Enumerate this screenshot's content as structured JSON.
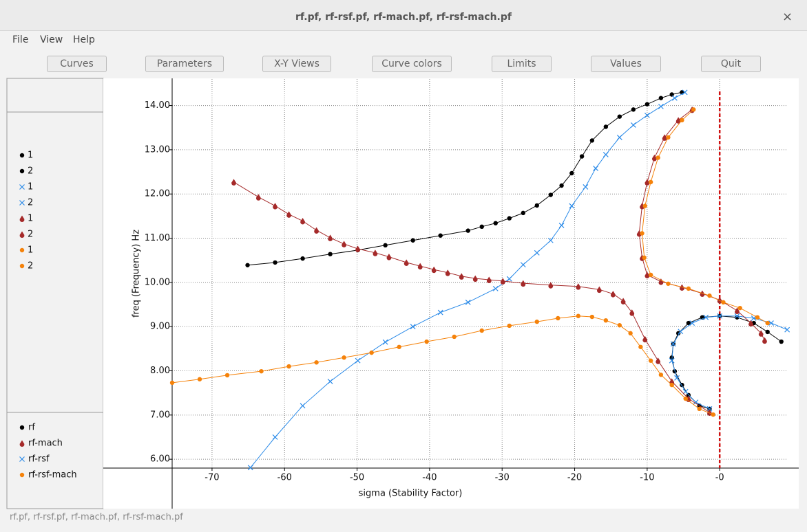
{
  "window": {
    "title": "rf.pf, rf-rsf.pf, rf-mach.pf, rf-rsf-mach.pf",
    "close": "×",
    "menu": [
      "File",
      "View",
      "Help"
    ],
    "buttons": [
      "Curves",
      "Parameters",
      "X-Y Views",
      "Curve colors",
      "Limits",
      "Values",
      "Quit"
    ],
    "status": "rf.pf, rf-rsf.pf, rf-mach.pf, rf-rsf-mach.pf"
  },
  "chart_data": {
    "type": "line",
    "x_label": "sigma (Stability Factor)",
    "y_label": "freq (Frequency) Hz",
    "xlim": [
      -75.5,
      10.9
    ],
    "ylim": [
      5.8,
      14.6
    ],
    "xticks": [
      -70,
      -60,
      -50,
      -40,
      -30,
      -20,
      -10,
      {
        "value": 0,
        "label": "-0"
      }
    ],
    "yticks": [
      {
        "value": 6,
        "label": "6.00"
      },
      {
        "value": 7,
        "label": "7.00"
      },
      {
        "value": 8,
        "label": "8.00"
      },
      {
        "value": 9,
        "label": "9.00"
      },
      {
        "value": 10,
        "label": "10.00"
      },
      {
        "value": 11,
        "label": "11.00"
      },
      {
        "value": 12,
        "label": "12.00"
      },
      {
        "value": 13,
        "label": "13.00"
      },
      {
        "value": 14,
        "label": "14.00"
      }
    ],
    "grid": true,
    "vline": {
      "value": 0,
      "color": "#d01010"
    },
    "series": [
      {
        "name": "1",
        "color": "#000000",
        "marker": "circle",
        "x": [
          -65.1,
          -61.3,
          -57.5,
          -53.7,
          -49.9,
          -46.1,
          -42.3,
          -38.5,
          -34.7,
          -32.8,
          -30.9,
          -29.0,
          -27.1,
          -25.2,
          -23.3,
          -21.8,
          -20.4,
          -19.0,
          -17.6,
          -15.7,
          -13.8,
          -11.9,
          -10.0,
          -8.1,
          -6.6,
          -5.2
        ],
        "values": [
          10.39,
          10.45,
          10.54,
          10.64,
          10.73,
          10.84,
          10.95,
          11.06,
          11.17,
          11.26,
          11.34,
          11.45,
          11.57,
          11.74,
          11.98,
          12.19,
          12.47,
          12.85,
          13.21,
          13.52,
          13.75,
          13.91,
          14.03,
          14.17,
          14.25,
          14.3
        ]
      },
      {
        "name": "2",
        "color": "#000000",
        "marker": "circle",
        "x": [
          -1.4,
          -2.8,
          -4.3,
          -5.2,
          -6.2,
          -6.6,
          -6.4,
          -5.7,
          -4.3,
          -2.4,
          0,
          2.4,
          4.7,
          6.6,
          8.5
        ],
        "values": [
          7.14,
          7.21,
          7.45,
          7.68,
          7.99,
          8.3,
          8.61,
          8.85,
          9.08,
          9.21,
          9.24,
          9.21,
          9.08,
          8.88,
          8.66
        ]
      },
      {
        "name": "1",
        "color": "#2a8ae8",
        "marker": "x",
        "x": [
          -64.7,
          -61.3,
          -57.5,
          -53.7,
          -49.9,
          -46.1,
          -42.3,
          -38.5,
          -34.7,
          -30.9,
          -29.0,
          -27.1,
          -25.2,
          -23.3,
          -21.8,
          -20.4,
          -18.5,
          -17.1,
          -15.7,
          -13.8,
          -11.9,
          -10.0,
          -8.1,
          -6.2,
          -4.8
        ],
        "values": [
          5.81,
          6.5,
          7.21,
          7.76,
          8.23,
          8.65,
          9.0,
          9.32,
          9.55,
          9.86,
          10.08,
          10.4,
          10.67,
          10.95,
          11.29,
          11.73,
          12.16,
          12.58,
          12.89,
          13.28,
          13.56,
          13.78,
          13.98,
          14.17,
          14.3
        ]
      },
      {
        "name": "2",
        "color": "#2a8ae8",
        "marker": "x",
        "x": [
          -1.4,
          -3.3,
          -4.7,
          -5.9,
          -6.6,
          -6.4,
          -5.4,
          -3.8,
          -1.9,
          0,
          2.4,
          4.7,
          7.1,
          9.3
        ],
        "values": [
          7.14,
          7.29,
          7.53,
          7.84,
          8.23,
          8.61,
          8.89,
          9.08,
          9.21,
          9.24,
          9.24,
          9.19,
          9.08,
          8.93
        ]
      },
      {
        "name": "1",
        "color": "#a52a2a",
        "marker": "drop",
        "x": [
          -67.0,
          -63.6,
          -61.3,
          -59.4,
          -57.5,
          -55.6,
          -53.7,
          -51.8,
          -49.9,
          -47.5,
          -45.6,
          -43.2,
          -41.3,
          -39.4,
          -37.5,
          -35.6,
          -33.7,
          -31.8,
          -29.9,
          -27.1,
          -23.3,
          -19.5,
          -16.6,
          -14.7,
          -13.3,
          -12.1,
          -10.3,
          -8.5,
          -6.6,
          -4.3,
          -1.4
        ],
        "values": [
          12.27,
          11.93,
          11.73,
          11.54,
          11.39,
          11.18,
          11.01,
          10.87,
          10.76,
          10.67,
          10.58,
          10.45,
          10.37,
          10.29,
          10.22,
          10.14,
          10.09,
          10.06,
          10.03,
          9.98,
          9.94,
          9.91,
          9.84,
          9.74,
          9.58,
          9.32,
          8.72,
          8.23,
          7.76,
          7.37,
          7.06
        ]
      },
      {
        "name": "2",
        "color": "#a52a2a",
        "marker": "drop",
        "x": [
          -3.8,
          -5.7,
          -7.6,
          -9.0,
          -10.0,
          -10.7,
          -11.1,
          -10.7,
          -10.0,
          -8.1,
          -5.2,
          -2.4,
          0,
          2.4,
          4.3,
          5.7,
          6.2
        ],
        "values": [
          13.91,
          13.67,
          13.28,
          12.82,
          12.27,
          11.73,
          11.11,
          10.56,
          10.17,
          10.02,
          9.89,
          9.75,
          9.6,
          9.36,
          9.08,
          8.85,
          8.69
        ]
      },
      {
        "name": "1",
        "color": "#f5820a",
        "marker": "circle",
        "x": [
          -75.5,
          -71.7,
          -67.9,
          -63.2,
          -59.4,
          -55.6,
          -51.8,
          -48.0,
          -44.2,
          -40.4,
          -36.6,
          -32.8,
          -29.0,
          -25.2,
          -22.3,
          -19.5,
          -17.6,
          -15.7,
          -13.8,
          -12.3,
          -10.9,
          -9.5,
          -8.1,
          -6.6,
          -4.7,
          -2.8,
          -0.9
        ],
        "values": [
          7.73,
          7.81,
          7.9,
          7.99,
          8.1,
          8.19,
          8.3,
          8.41,
          8.54,
          8.66,
          8.77,
          8.91,
          9.02,
          9.11,
          9.19,
          9.24,
          9.22,
          9.14,
          9.03,
          8.85,
          8.54,
          8.23,
          7.91,
          7.68,
          7.37,
          7.14,
          7.01
        ]
      },
      {
        "name": "2",
        "color": "#f5820a",
        "marker": "circle",
        "x": [
          -3.6,
          -5.2,
          -7.1,
          -8.5,
          -9.5,
          -10.3,
          -10.7,
          -10.4,
          -9.5,
          -7.1,
          -4.3,
          -1.4,
          0.5,
          2.8,
          5.2,
          6.6
        ],
        "values": [
          13.91,
          13.67,
          13.28,
          12.82,
          12.27,
          11.73,
          11.11,
          10.56,
          10.17,
          9.97,
          9.86,
          9.7,
          9.55,
          9.42,
          9.21,
          9.08
        ]
      }
    ],
    "legend": [
      {
        "name": "rf",
        "color": "#000000",
        "marker": "circle"
      },
      {
        "name": "rf-mach",
        "color": "#a52a2a",
        "marker": "drop"
      },
      {
        "name": "rf-rsf",
        "color": "#2a8ae8",
        "marker": "x"
      },
      {
        "name": "rf-rsf-mach",
        "color": "#f5820a",
        "marker": "circle"
      }
    ]
  }
}
